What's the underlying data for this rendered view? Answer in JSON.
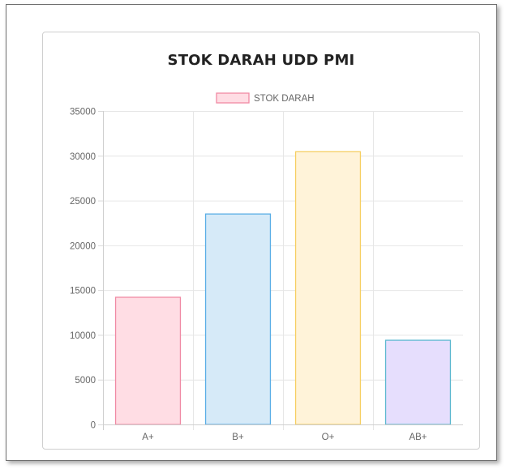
{
  "card": {
    "title": "STOK DARAH UDD PMI"
  },
  "chart_data": {
    "type": "bar",
    "title": "",
    "xlabel": "",
    "ylabel": "",
    "categories": [
      "A+",
      "B+",
      "O+",
      "AB+"
    ],
    "series": [
      {
        "name": "STOK DARAH",
        "values": [
          14200,
          23500,
          30450,
          9400
        ]
      }
    ],
    "ylim": [
      0,
      35000
    ],
    "yticks": [
      0,
      5000,
      10000,
      15000,
      20000,
      25000,
      30000,
      35000
    ],
    "grid": true,
    "legend_position": "top",
    "colors": {
      "legend_fill": "#ffdde4",
      "legend_border": "#f08aa4",
      "bar_fills": [
        "#ffdde4",
        "#d6eaf8",
        "#fff3d9",
        "#e6defd"
      ],
      "bar_borders": [
        "#f08aa4",
        "#5aaee6",
        "#f6cf62",
        "#5cb8d0"
      ]
    }
  }
}
